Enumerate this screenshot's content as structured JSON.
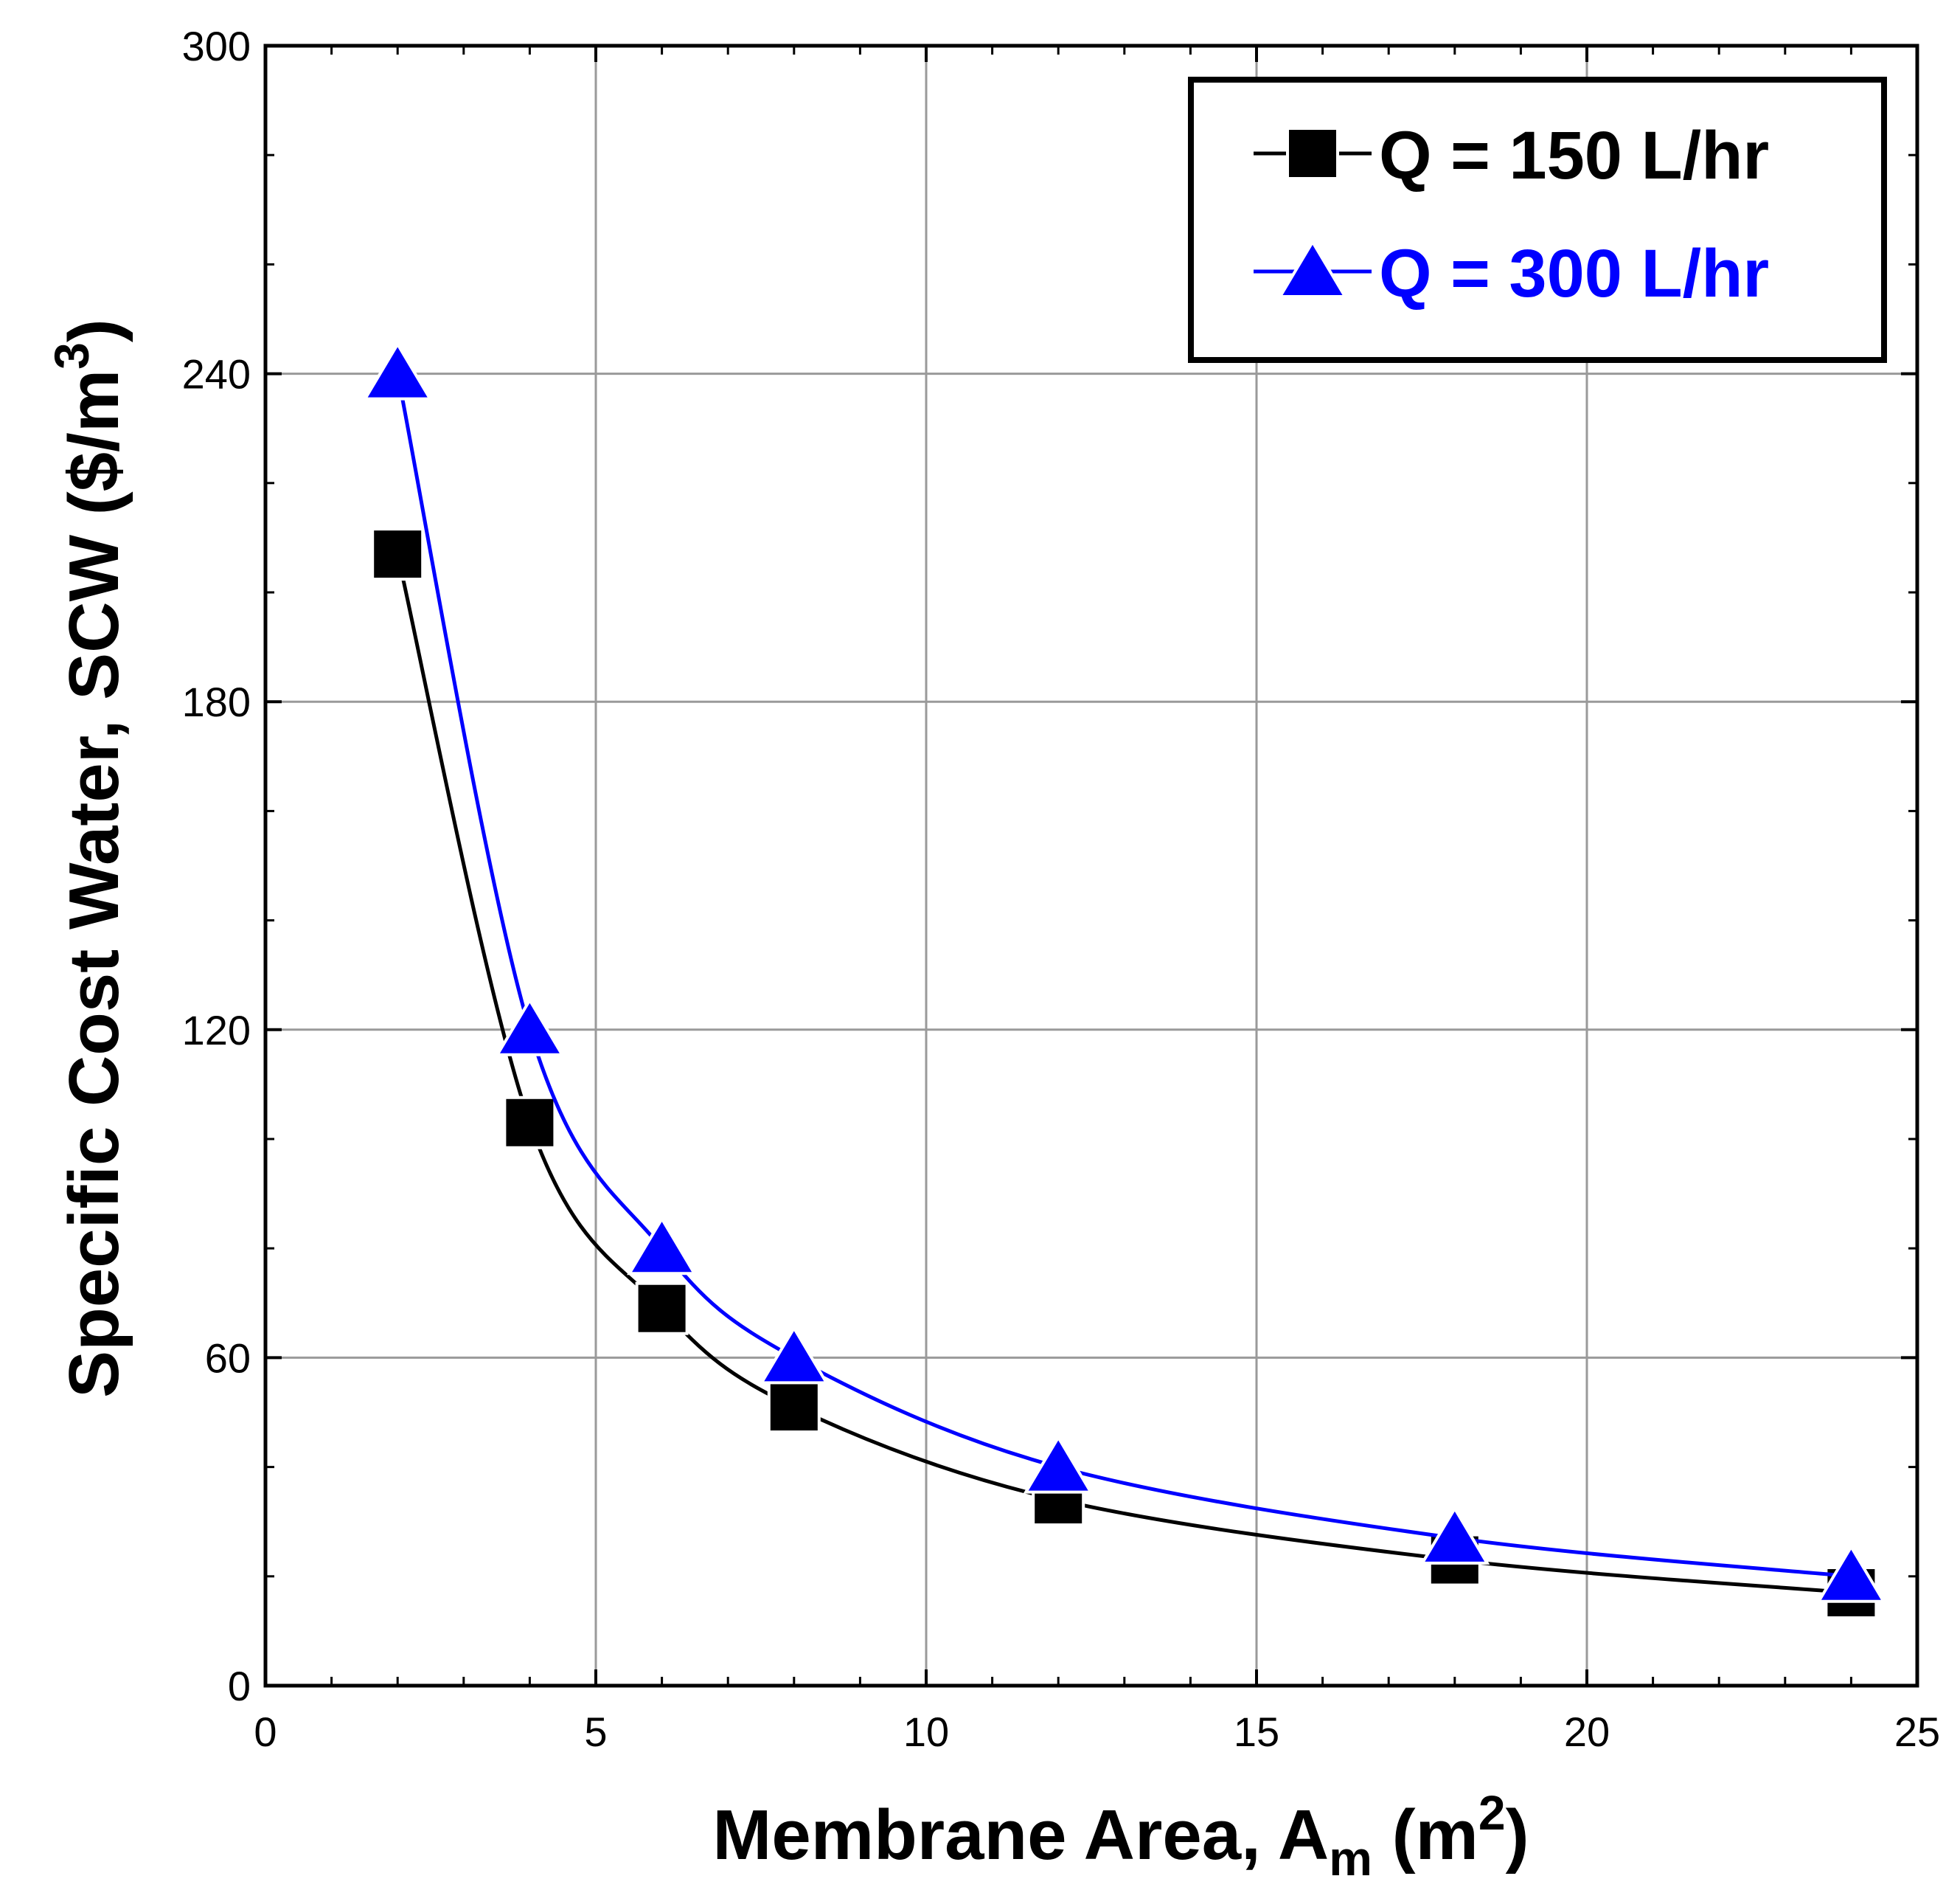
{
  "chart_data": {
    "type": "line",
    "title": "",
    "xlabel": {
      "prefix": "Membrane Area, A",
      "subscript": "m",
      "middle": " (m",
      "superscript": "2",
      "suffix": ")"
    },
    "ylabel": {
      "text": "Specific Cost Water, SCW ($/m",
      "superscript": "3",
      "suffix": ")"
    },
    "xlim": [
      0,
      25
    ],
    "ylim": [
      0,
      300
    ],
    "xticks": [
      "0",
      "5",
      "10",
      "15",
      "20",
      "25"
    ],
    "yticks": [
      "0",
      "60",
      "120",
      "180",
      "240",
      "300"
    ],
    "grid": true,
    "legend_position": "top-right",
    "series": [
      {
        "name": "Q = 150 L/hr",
        "marker": "square",
        "color": "#000000",
        "x": [
          2,
          4,
          6,
          8,
          12,
          18,
          24
        ],
        "y": [
          207,
          103,
          69,
          51,
          34,
          23,
          17
        ]
      },
      {
        "name": "Q = 300 L/hr",
        "marker": "triangle",
        "color": "#0000ff",
        "x": [
          2,
          4,
          6,
          8,
          12,
          18,
          24
        ],
        "y": [
          240,
          120,
          80,
          60,
          40,
          27,
          20
        ]
      }
    ]
  }
}
